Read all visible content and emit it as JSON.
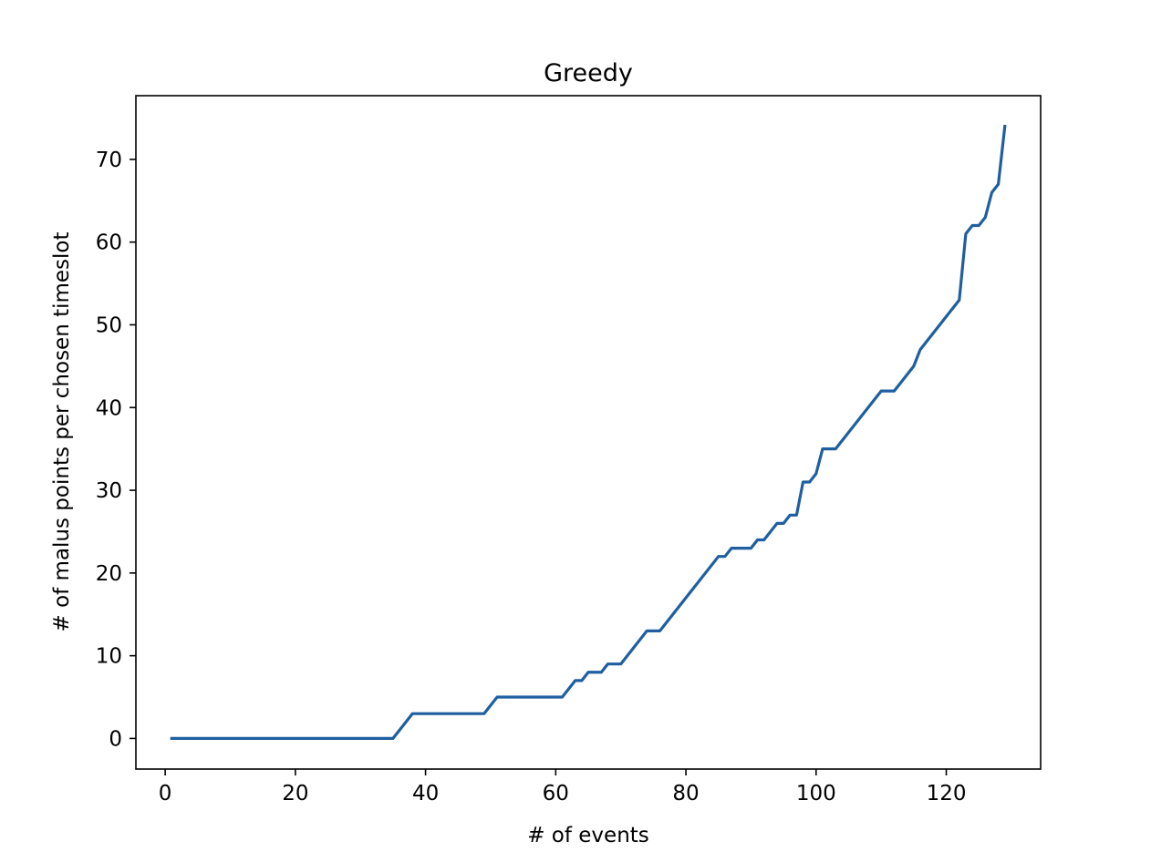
{
  "chart_data": {
    "type": "line",
    "title": "Greedy",
    "xlabel": "# of events",
    "ylabel": "# of malus points per chosen timeslot",
    "xlim": [
      -4.5,
      134.5
    ],
    "ylim": [
      -3.7,
      77.7
    ],
    "xticks": [
      0,
      20,
      40,
      60,
      80,
      100,
      120
    ],
    "yticks": [
      0,
      10,
      20,
      30,
      40,
      50,
      60,
      70
    ],
    "grid": false,
    "line_color": "#1f5fa0",
    "series": [
      {
        "points": [
          [
            1,
            0
          ],
          [
            35,
            0
          ],
          [
            38,
            3
          ],
          [
            49,
            3
          ],
          [
            51,
            5
          ],
          [
            61,
            5
          ],
          [
            63,
            7
          ],
          [
            64,
            7
          ],
          [
            65,
            8
          ],
          [
            67,
            8
          ],
          [
            68,
            9
          ],
          [
            70,
            9
          ],
          [
            74,
            13
          ],
          [
            76,
            13
          ],
          [
            85,
            22
          ],
          [
            86,
            22
          ],
          [
            87,
            23
          ],
          [
            90,
            23
          ],
          [
            91,
            24
          ],
          [
            92,
            24
          ],
          [
            94,
            26
          ],
          [
            95,
            26
          ],
          [
            96,
            27
          ],
          [
            97,
            27
          ],
          [
            98,
            31
          ],
          [
            99,
            31
          ],
          [
            100,
            32
          ],
          [
            101,
            35
          ],
          [
            103,
            35
          ],
          [
            110,
            42
          ],
          [
            112,
            42
          ],
          [
            115,
            45
          ],
          [
            116,
            47
          ],
          [
            122,
            53
          ],
          [
            123,
            61
          ],
          [
            124,
            62
          ],
          [
            125,
            62
          ],
          [
            126,
            63
          ],
          [
            127,
            66
          ],
          [
            128,
            67
          ],
          [
            129,
            74
          ]
        ]
      }
    ]
  }
}
